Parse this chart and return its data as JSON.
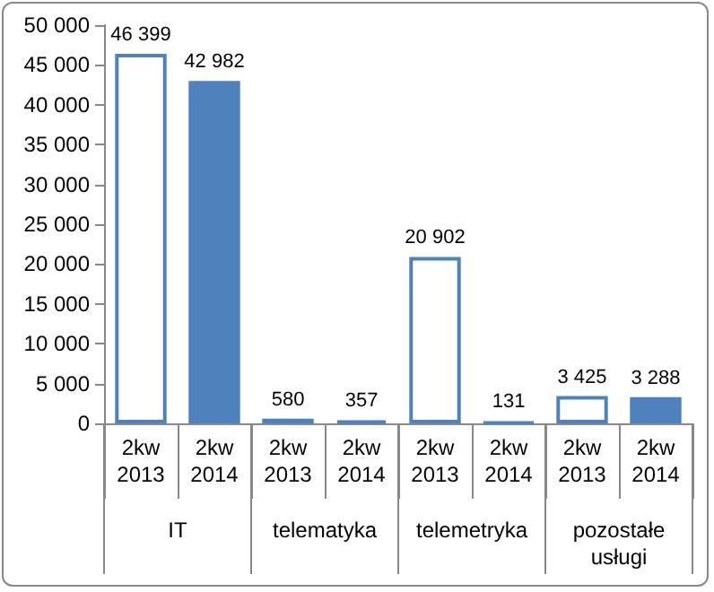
{
  "chart_data": {
    "type": "bar",
    "categories": [
      "2kw\n2013",
      "2kw\n2014",
      "2kw\n2013",
      "2kw\n2014",
      "2kw\n2013",
      "2kw\n2014",
      "2kw\n2013",
      "2kw\n2014"
    ],
    "series": [
      {
        "color": "#4f81bd",
        "colors": [
          "#ffffff",
          "#4f81bd",
          "#ffffff",
          "#4f81bd",
          "#ffffff",
          "#4f81bd",
          "#ffffff",
          "#4f81bd"
        ],
        "values": [
          46399,
          42982,
          580,
          357,
          20902,
          131,
          3425,
          3288
        ],
        "value_labels": [
          "46 399",
          "42 982",
          "580",
          "357",
          "20 902",
          "131",
          "3 425",
          "3 288"
        ]
      }
    ],
    "annotations": [
      "IT",
      "telematyka",
      "telemetryka",
      "pozostałe\nusługi"
    ],
    "ylim": [
      0,
      50000
    ],
    "yticks": [
      {
        "value": 0,
        "label": "0"
      },
      {
        "value": 5000,
        "label": "5 000"
      },
      {
        "value": 10000,
        "label": "10 000"
      },
      {
        "value": 15000,
        "label": "15 000"
      },
      {
        "value": 20000,
        "label": "20 000"
      },
      {
        "value": 25000,
        "label": "25 000"
      },
      {
        "value": 30000,
        "label": "30 000"
      },
      {
        "value": 35000,
        "label": "35 000"
      },
      {
        "value": 40000,
        "label": "40 000"
      },
      {
        "value": 45000,
        "label": "45 000"
      },
      {
        "value": 50000,
        "label": "50 000"
      }
    ],
    "grid": false
  }
}
